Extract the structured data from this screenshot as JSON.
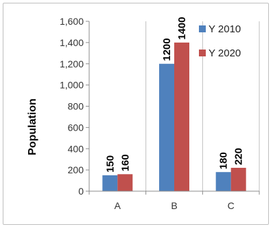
{
  "chart_data": {
    "type": "bar",
    "categories": [
      "A",
      "B",
      "C"
    ],
    "series": [
      {
        "name": "Y 2010",
        "values": [
          150,
          1200,
          180
        ],
        "color": "#4f81bd"
      },
      {
        "name": "Y 2020",
        "values": [
          160,
          1400,
          220
        ],
        "color": "#c0504d"
      }
    ],
    "data_labels": [
      [
        "150",
        "1200",
        "180"
      ],
      [
        "160",
        "1400",
        "220"
      ]
    ],
    "ylabel": "Population",
    "xlabel": "",
    "ylim": [
      0,
      1600
    ],
    "yticks": [
      0,
      200,
      400,
      600,
      800,
      1000,
      1200,
      1400,
      1600
    ],
    "ytick_labels": [
      "0",
      "200",
      "400",
      "600",
      "800",
      "1,000",
      "1,200",
      "1,400",
      "1,600"
    ],
    "grid": true,
    "legend_position": "top-right"
  }
}
